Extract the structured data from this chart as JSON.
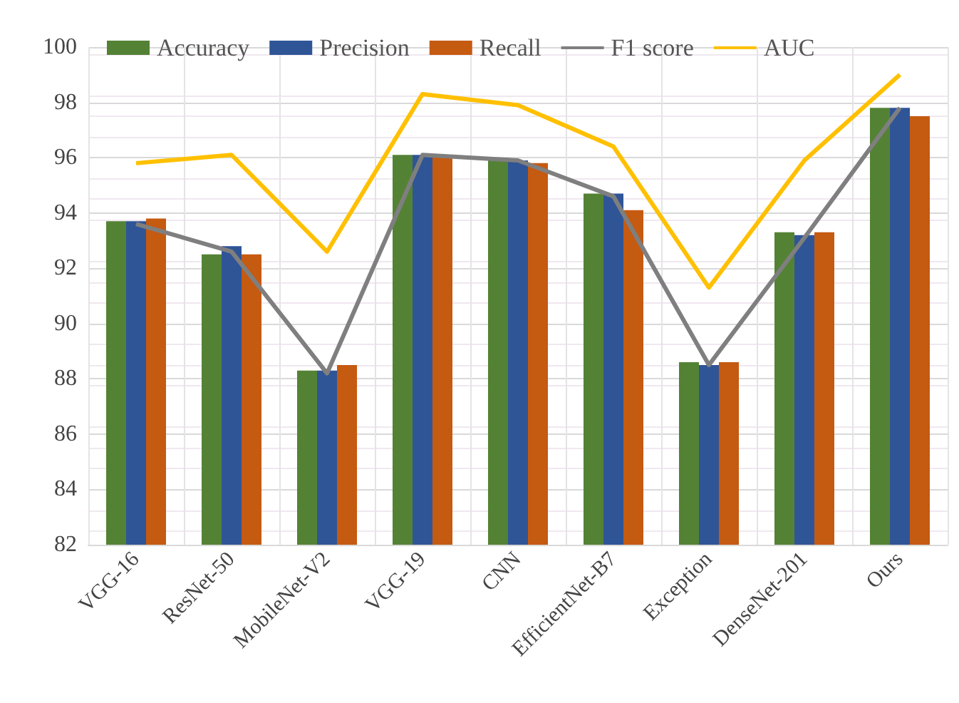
{
  "chart_data": {
    "type": "bar",
    "categories": [
      "VGG-16",
      "ResNet-50",
      "MobileNet-V2",
      "VGG-19",
      "CNN",
      "EfficientNet-B7",
      "Exception",
      "DenseNet-201",
      "Ours"
    ],
    "series": [
      {
        "name": "Accuracy",
        "color": "#548235",
        "values": [
          93.7,
          92.5,
          88.3,
          96.1,
          96.0,
          94.7,
          88.6,
          93.3,
          97.8
        ]
      },
      {
        "name": "Precision",
        "color": "#2f5597",
        "values": [
          93.7,
          92.8,
          88.3,
          96.1,
          95.9,
          94.7,
          88.5,
          93.2,
          97.8
        ]
      },
      {
        "name": "Recall",
        "color": "#c55a11",
        "values": [
          93.8,
          92.5,
          88.5,
          96.1,
          95.8,
          94.1,
          88.6,
          93.3,
          97.5
        ]
      },
      {
        "name": "F1 score",
        "type": "line",
        "color": "#7f7f7f",
        "values": [
          93.6,
          92.6,
          88.2,
          96.1,
          95.9,
          94.6,
          88.5,
          93.1,
          97.8
        ]
      },
      {
        "name": "AUC",
        "type": "line",
        "color": "#ffc000",
        "values": [
          95.8,
          96.1,
          92.6,
          98.3,
          97.9,
          96.4,
          91.3,
          95.9,
          99.0
        ]
      }
    ],
    "ylim": [
      82,
      100
    ],
    "yticks": [
      82,
      84,
      86,
      88,
      90,
      92,
      94,
      96,
      98,
      100
    ],
    "grid": true,
    "legend": "top",
    "marker": "none"
  }
}
